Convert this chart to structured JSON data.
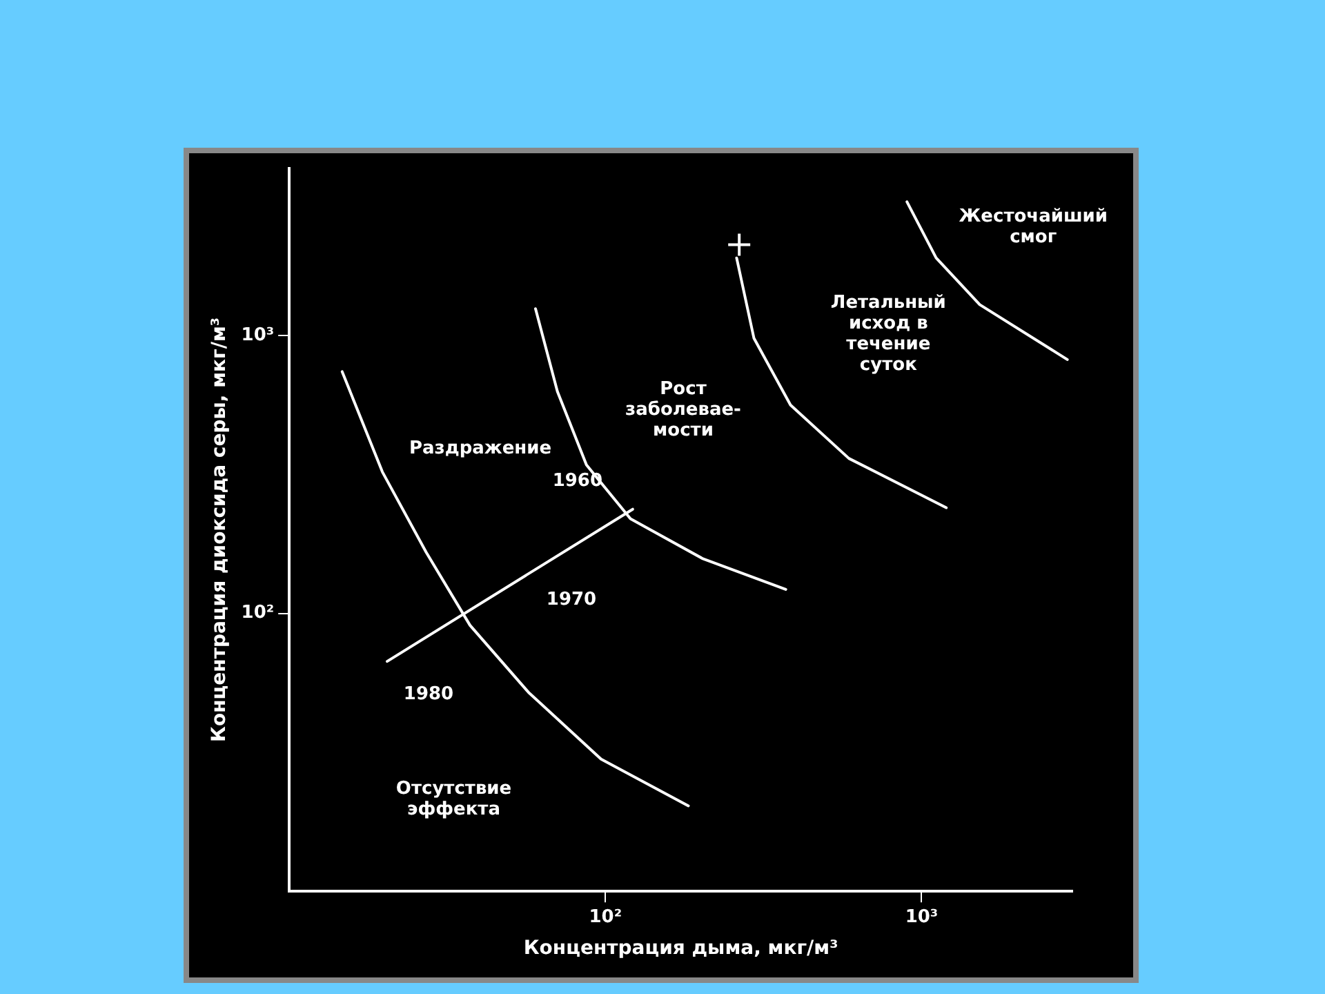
{
  "chart_data": {
    "type": "line",
    "xlabel": "Концентрация дыма, мкг/м³",
    "ylabel": "Концентрация диоксида серы, мкг/м³",
    "log": "xy",
    "marker": "none",
    "line_style": "solid",
    "xlim": [
      10,
      3000
    ],
    "ylim": [
      10,
      4000
    ],
    "xticks": [
      {
        "value": 100,
        "label": "10²"
      },
      {
        "value": 1000,
        "label": "10³"
      }
    ],
    "yticks": [
      {
        "value": 100,
        "label": "10²"
      },
      {
        "value": 1000,
        "label": "10³"
      }
    ],
    "series": [
      {
        "color": "#ffffff",
        "x": [
          14.7,
          19.7,
          27.1,
          37.3,
          57.1,
          96.9,
          183
        ],
        "values": [
          741,
          323,
          166,
          90.6,
          52,
          29.9,
          20.3
        ]
      },
      {
        "color": "#ffffff",
        "x": [
          60.1,
          70.5,
          87.1,
          120,
          204,
          372
        ],
        "values": [
          1248,
          628,
          342,
          219,
          157,
          122
        ]
      },
      {
        "color": "#ffffff",
        "x": [
          260,
          295,
          385,
          589,
          1197
        ],
        "values": [
          1901,
          977,
          562,
          361,
          240
        ]
      },
      {
        "color": "#ffffff",
        "x": [
          899,
          1112,
          1528,
          2891
        ],
        "values": [
          3027,
          1901,
          1291,
          819
        ]
      },
      {
        "color": "#ffffff",
        "x": [
          20.4,
          60.1,
          122
        ],
        "values": [
          67.2,
          144,
          237
        ]
      },
      {
        "type": "scatter",
        "marker": "cross",
        "color": "#ffffff",
        "x": [
          265
        ],
        "values": [
          2120
        ]
      }
    ],
    "annotations": [
      "Раздражение",
      "Рост\nзаболевае-\nмости",
      "Летальный\nисход в\nтечение\nсуток",
      "Жесточайший\nсмог",
      "Отсутствие\nэффекта",
      {
        "text": "1960",
        "x": 122,
        "y": 237
      },
      {
        "text": "1970",
        "x": 60.1,
        "y": 144
      },
      {
        "text": "1980",
        "x": 20.4,
        "y": 67.2
      }
    ]
  }
}
